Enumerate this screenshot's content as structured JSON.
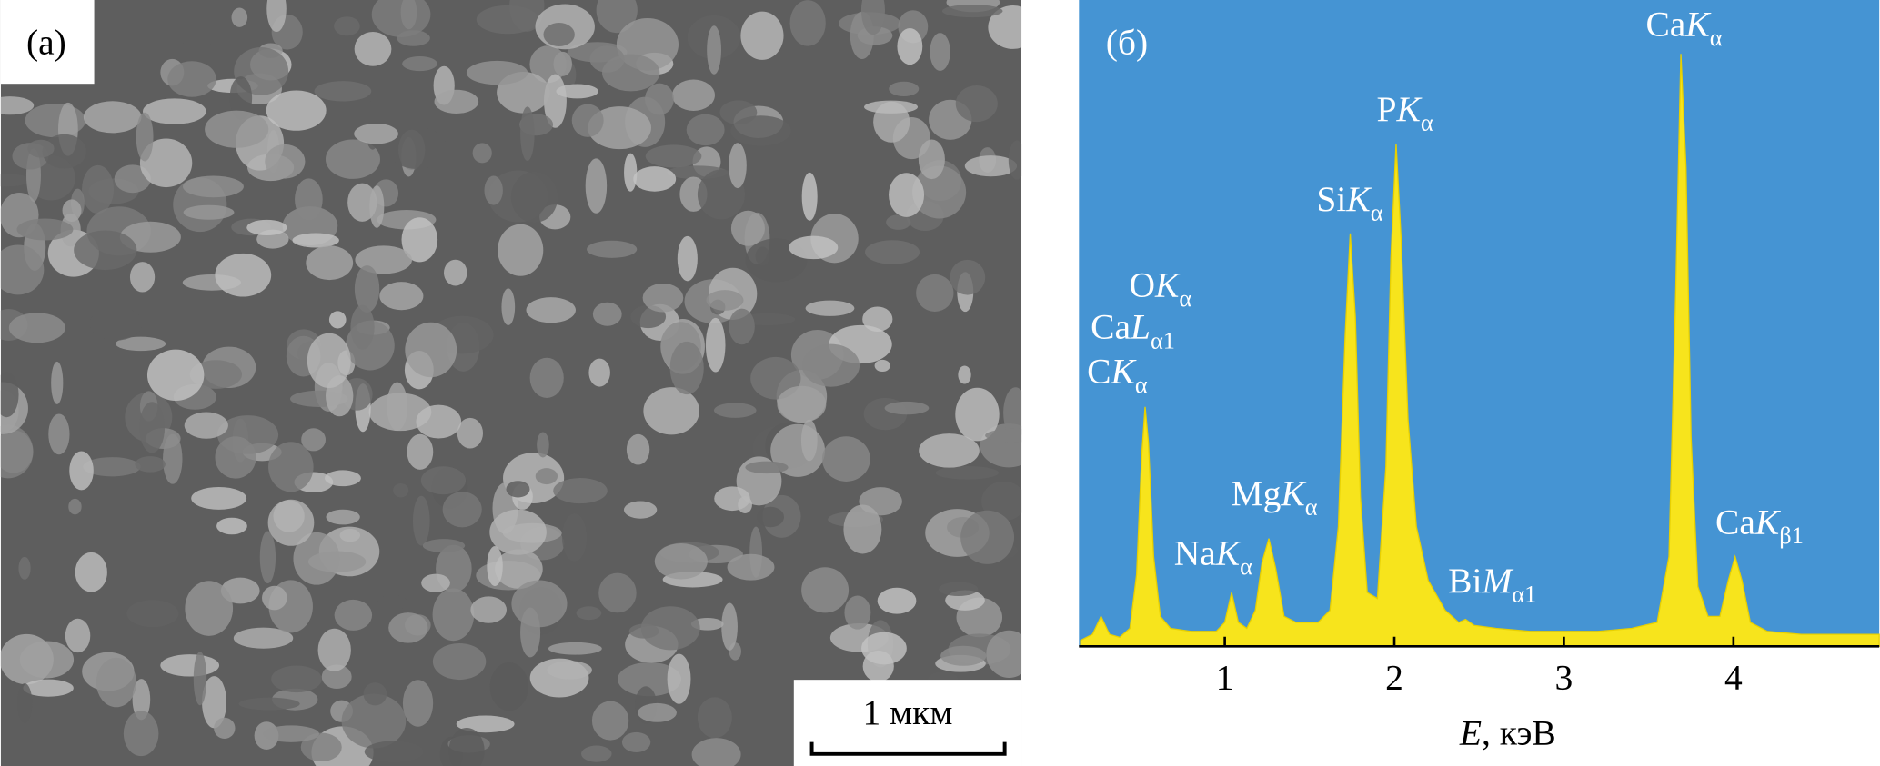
{
  "panel_a": {
    "label": "(а)",
    "scale_bar": "1 мкм"
  },
  "chart_data": {
    "type": "area",
    "panel_label": "(б)",
    "xlabel": {
      "var": "E",
      "unit": ", кэВ"
    },
    "color": "#f7e41c",
    "background": "#4594d3",
    "xlim": [
      0.14,
      4.86
    ],
    "ylim": [
      0,
      100
    ],
    "xticks": [
      1,
      2,
      3,
      4
    ],
    "x": [
      0.15,
      0.22,
      0.27,
      0.32,
      0.38,
      0.44,
      0.48,
      0.51,
      0.53,
      0.55,
      0.58,
      0.62,
      0.68,
      0.8,
      0.95,
      1.0,
      1.04,
      1.08,
      1.13,
      1.18,
      1.22,
      1.26,
      1.3,
      1.35,
      1.42,
      1.55,
      1.62,
      1.67,
      1.71,
      1.74,
      1.77,
      1.8,
      1.84,
      1.9,
      1.95,
      1.98,
      2.01,
      2.04,
      2.08,
      2.13,
      2.2,
      2.3,
      2.38,
      2.42,
      2.47,
      2.6,
      2.8,
      3.0,
      3.2,
      3.4,
      3.55,
      3.62,
      3.66,
      3.69,
      3.72,
      3.75,
      3.79,
      3.85,
      3.92,
      3.97,
      4.01,
      4.05,
      4.1,
      4.2,
      4.4,
      4.6,
      4.86
    ],
    "values": [
      1,
      2,
      5,
      2,
      1.5,
      3,
      12,
      32,
      40,
      34,
      15,
      5,
      3,
      2.5,
      2.5,
      4,
      9,
      4,
      3,
      6,
      14,
      18,
      13,
      5,
      4,
      4,
      6,
      20,
      52,
      69,
      55,
      25,
      9,
      8,
      30,
      65,
      84,
      68,
      38,
      20,
      11,
      6,
      4,
      4.5,
      3.5,
      3,
      2.5,
      2.5,
      2.5,
      3,
      4,
      15,
      60,
      99,
      80,
      35,
      10,
      5,
      5,
      11,
      15,
      11,
      4,
      2.5,
      2,
      2,
      2
    ],
    "annotations": [
      {
        "prefix": "O",
        "letter": "K",
        "sub": "α"
      },
      {
        "prefix": "Ca",
        "letter": "L",
        "sub": "α1"
      },
      {
        "prefix": "C",
        "letter": "K",
        "sub": "α"
      },
      {
        "prefix": "Na",
        "letter": "K",
        "sub": "α"
      },
      {
        "prefix": "Mg",
        "letter": "K",
        "sub": "α"
      },
      {
        "prefix": "Si",
        "letter": "K",
        "sub": "α"
      },
      {
        "prefix": "P",
        "letter": "K",
        "sub": "α"
      },
      {
        "prefix": "Bi",
        "letter": "M",
        "sub": "α1"
      },
      {
        "prefix": "Ca",
        "letter": "K",
        "sub": "α"
      },
      {
        "prefix": "Ca",
        "letter": "K",
        "sub": "β1"
      }
    ]
  }
}
